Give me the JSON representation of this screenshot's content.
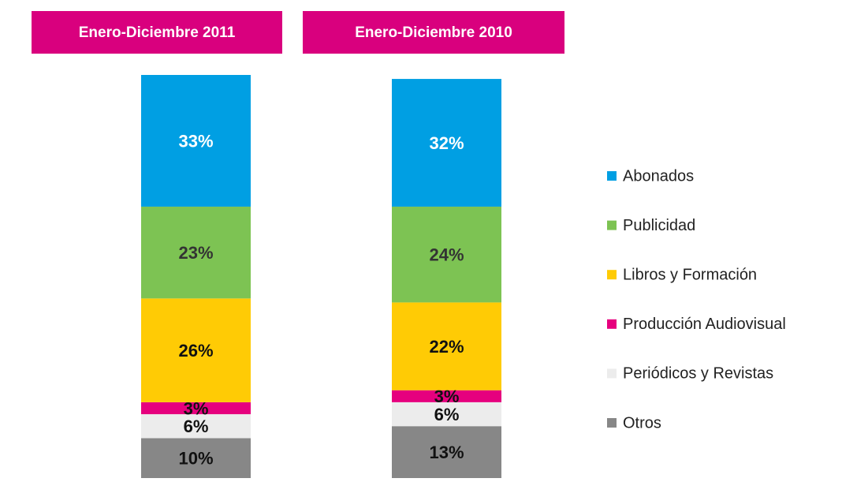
{
  "chart_data": {
    "type": "bar",
    "stacked": true,
    "categories": [
      "Enero-Diciembre 2011",
      "Enero-Diciembre 2010"
    ],
    "header_color": "#d9007e",
    "series": [
      {
        "name": "Abonados",
        "color": "#009fe3",
        "values": [
          33,
          32
        ],
        "value_labels": [
          "33%",
          "32%"
        ],
        "label_color": "#ffffff"
      },
      {
        "name": "Publicidad",
        "color": "#7dc353",
        "values": [
          23,
          24
        ],
        "value_labels": [
          "23%",
          "24%"
        ],
        "label_color": "#333333"
      },
      {
        "name": "Libros y Formación",
        "color": "#ffcb05",
        "values": [
          26,
          22
        ],
        "value_labels": [
          "26%",
          "22%"
        ],
        "label_color": "#111111"
      },
      {
        "name": "Producción Audiovisual",
        "color": "#e6007e",
        "values": [
          3,
          3
        ],
        "value_labels": [
          "3%",
          "3%"
        ],
        "label_color": "#111111"
      },
      {
        "name": "Periódicos y Revistas",
        "color": "#ececec",
        "values": [
          6,
          6
        ],
        "value_labels": [
          "6%",
          "6%"
        ],
        "label_color": "#111111"
      },
      {
        "name": "Otros",
        "color": "#878787",
        "values": [
          10,
          13
        ],
        "value_labels": [
          "10%",
          "13%"
        ],
        "label_color": "#111111"
      }
    ]
  }
}
